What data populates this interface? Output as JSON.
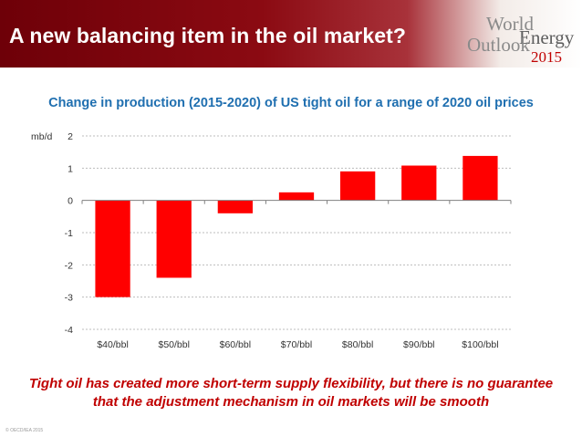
{
  "header": {
    "title": "A new balancing item in the oil market?",
    "logo": {
      "line1": "World",
      "line2": "Energy",
      "line3": "Outlook",
      "year": "2015"
    }
  },
  "chart_data": {
    "type": "bar",
    "title": "Change in production (2015-2020) of US tight oil for a range of 2020 oil prices",
    "ylabel": "mb/d",
    "xlabel": "",
    "categories": [
      "$40/bbl",
      "$50/bbl",
      "$60/bbl",
      "$70/bbl",
      "$80/bbl",
      "$90/bbl",
      "$100/bbl"
    ],
    "values": [
      -3.0,
      -2.4,
      -0.4,
      0.25,
      0.9,
      1.08,
      1.38
    ],
    "ylim": [
      -4,
      2
    ],
    "yticks": [
      2,
      1,
      0,
      -1,
      -2,
      -3,
      -4
    ],
    "grid": true,
    "bar_color": "#ff0000"
  },
  "caption": {
    "line1": "Tight oil has created more short-term supply flexibility, but there is no guarantee",
    "line2": "that the adjustment mechanism in oil markets will be smooth"
  },
  "footer": {
    "copyright": "© OECD/IEA 2015"
  }
}
